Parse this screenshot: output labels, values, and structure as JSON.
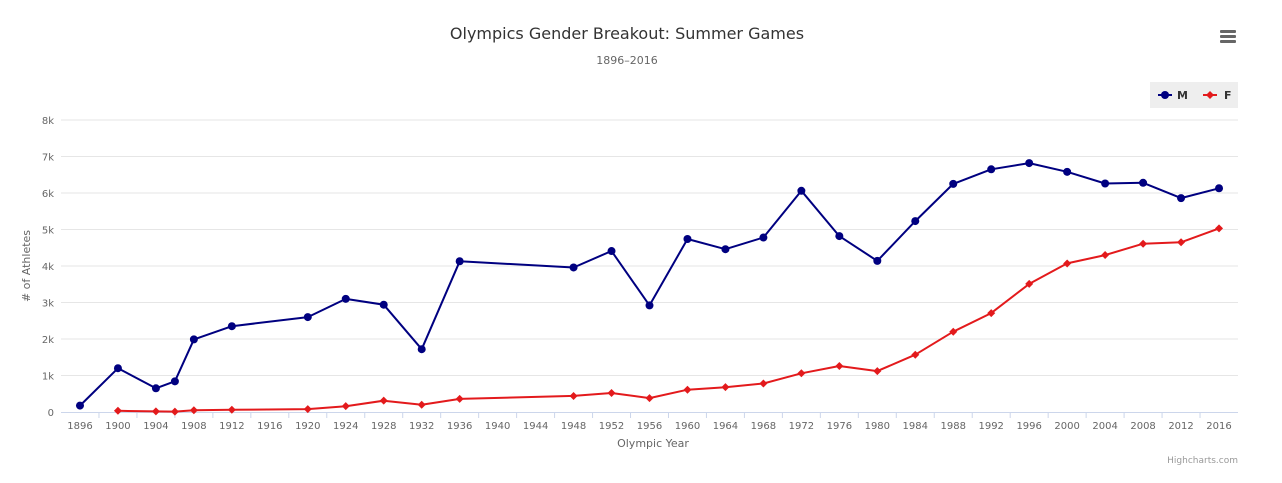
{
  "chart_data": {
    "type": "line",
    "title": "Olympics Gender Breakout: Summer Games",
    "subtitle": "1896–2016",
    "xlabel": "Olympic Year",
    "ylabel": "# of Athletes",
    "ylim": [
      0,
      8000
    ],
    "y_ticks": [
      "0",
      "1k",
      "2k",
      "3k",
      "4k",
      "5k",
      "6k",
      "7k",
      "8k"
    ],
    "y_tick_values": [
      0,
      1000,
      2000,
      3000,
      4000,
      5000,
      6000,
      7000,
      8000
    ],
    "x_ticks": [
      "1896",
      "1900",
      "1904",
      "1908",
      "1912",
      "1916",
      "1920",
      "1924",
      "1928",
      "1932",
      "1936",
      "1940",
      "1944",
      "1948",
      "1952",
      "1956",
      "1960",
      "1964",
      "1968",
      "1972",
      "1976",
      "1980",
      "1984",
      "1988",
      "1992",
      "1996",
      "2000",
      "2004",
      "2008",
      "2012",
      "2016"
    ],
    "legend_position": "top-right",
    "grid": true,
    "series": [
      {
        "name": "M",
        "color": "#000080",
        "marker": "circle",
        "x": [
          1896,
          1900,
          1904,
          1906,
          1908,
          1912,
          1920,
          1924,
          1928,
          1932,
          1936,
          1948,
          1952,
          1956,
          1960,
          1964,
          1968,
          1972,
          1976,
          1980,
          1984,
          1988,
          1992,
          1996,
          2000,
          2004,
          2008,
          2012,
          2016
        ],
        "values": [
          176,
          1200,
          650,
          840,
          1990,
          2350,
          2600,
          3100,
          2940,
          1720,
          4130,
          3960,
          4410,
          2920,
          4740,
          4460,
          4780,
          6060,
          4820,
          4140,
          5230,
          6250,
          6650,
          6820,
          6580,
          6260,
          6280,
          5860,
          6130
        ]
      },
      {
        "name": "F",
        "color": "#e31a1c",
        "marker": "diamond",
        "x": [
          1900,
          1904,
          1906,
          1908,
          1912,
          1920,
          1924,
          1928,
          1932,
          1936,
          1948,
          1952,
          1956,
          1960,
          1964,
          1968,
          1972,
          1976,
          1980,
          1984,
          1988,
          1992,
          1996,
          2000,
          2004,
          2008,
          2012,
          2016
        ],
        "values": [
          33,
          16,
          11,
          47,
          60,
          80,
          160,
          310,
          200,
          360,
          440,
          520,
          380,
          610,
          680,
          780,
          1060,
          1260,
          1120,
          1570,
          2200,
          2710,
          3510,
          4070,
          4300,
          4610,
          4650,
          5030
        ]
      }
    ]
  },
  "ui": {
    "menu_icon": "hamburger-menu-icon",
    "credits": "Highcharts.com"
  }
}
